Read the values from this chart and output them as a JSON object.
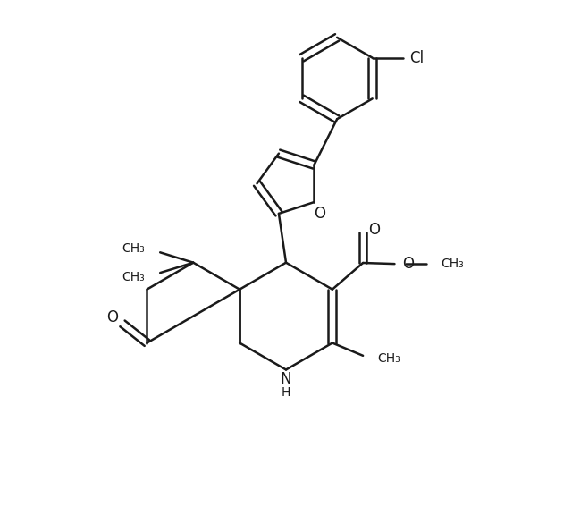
{
  "background_color": "#ffffff",
  "line_color": "#1a1a1a",
  "line_width": 1.8,
  "figure_size": [
    6.4,
    5.76
  ],
  "dpi": 100,
  "xlim": [
    0,
    10
  ],
  "ylim": [
    0,
    10
  ]
}
